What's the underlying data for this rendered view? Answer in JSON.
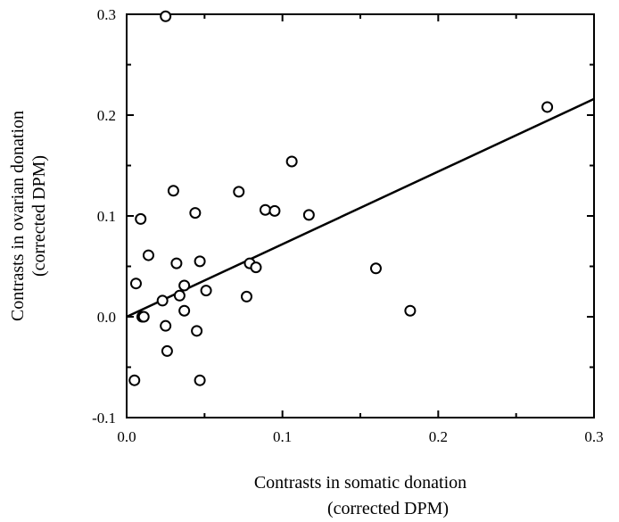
{
  "chart_data": {
    "type": "scatter",
    "title": "",
    "xlabel_line1": "Contrasts in somatic donation",
    "xlabel_line2": "(corrected DPM)",
    "ylabel_line1": "Contrasts in ovarian donation",
    "ylabel_line2": "(corrected DPM)",
    "xlim": [
      0.0,
      0.3
    ],
    "ylim": [
      -0.1,
      0.3
    ],
    "xticks": [
      0.0,
      0.1,
      0.2,
      0.3
    ],
    "xtick_labels": [
      "0.0",
      "0.1",
      "0.2",
      "0.3"
    ],
    "yticks": [
      -0.1,
      0.0,
      0.1,
      0.2,
      0.3
    ],
    "ytick_labels": [
      "-0.1",
      "0.0",
      "0.1",
      "0.2",
      "0.3"
    ],
    "grid": false,
    "marker": "open-circle",
    "regression_line": {
      "intercept": 0.0,
      "slope": 0.72
    },
    "points": [
      {
        "x": 0.025,
        "y": 0.298
      },
      {
        "x": 0.27,
        "y": 0.208
      },
      {
        "x": 0.106,
        "y": 0.154
      },
      {
        "x": 0.03,
        "y": 0.125
      },
      {
        "x": 0.072,
        "y": 0.124
      },
      {
        "x": 0.089,
        "y": 0.106
      },
      {
        "x": 0.095,
        "y": 0.105
      },
      {
        "x": 0.044,
        "y": 0.103
      },
      {
        "x": 0.117,
        "y": 0.101
      },
      {
        "x": 0.009,
        "y": 0.097
      },
      {
        "x": 0.014,
        "y": 0.061
      },
      {
        "x": 0.047,
        "y": 0.055
      },
      {
        "x": 0.032,
        "y": 0.053
      },
      {
        "x": 0.079,
        "y": 0.053
      },
      {
        "x": 0.083,
        "y": 0.049
      },
      {
        "x": 0.16,
        "y": 0.048
      },
      {
        "x": 0.006,
        "y": 0.033
      },
      {
        "x": 0.037,
        "y": 0.031
      },
      {
        "x": 0.051,
        "y": 0.026
      },
      {
        "x": 0.034,
        "y": 0.021
      },
      {
        "x": 0.077,
        "y": 0.02
      },
      {
        "x": 0.023,
        "y": 0.016
      },
      {
        "x": 0.037,
        "y": 0.006
      },
      {
        "x": 0.182,
        "y": 0.006
      },
      {
        "x": 0.01,
        "y": 0.0
      },
      {
        "x": 0.011,
        "y": 0.0
      },
      {
        "x": 0.025,
        "y": -0.009
      },
      {
        "x": 0.045,
        "y": -0.014
      },
      {
        "x": 0.026,
        "y": -0.034
      },
      {
        "x": 0.005,
        "y": -0.063
      },
      {
        "x": 0.047,
        "y": -0.063
      }
    ]
  }
}
